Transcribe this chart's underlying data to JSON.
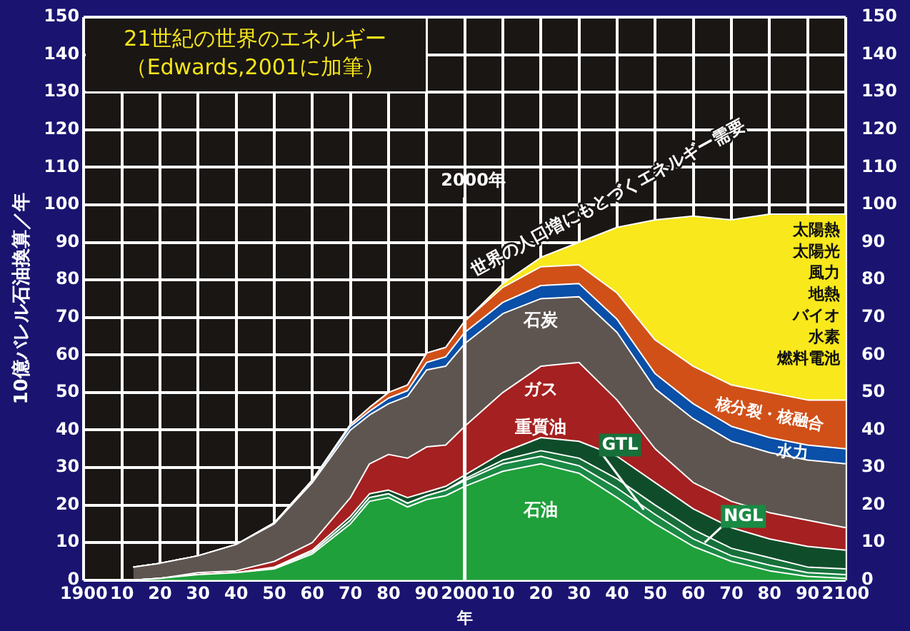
{
  "chart_data": {
    "type": "area",
    "stacked": true,
    "title": "21世紀の世界のエネルギー",
    "subtitle": "（Edwards,2001に加筆）",
    "ylabel": "10億バレル石油換算／年",
    "xlabel": "年",
    "x": [
      1913,
      1920,
      1930,
      1940,
      1950,
      1960,
      1970,
      1975,
      1980,
      1985,
      1990,
      1995,
      2000,
      2010,
      2020,
      2030,
      2040,
      2050,
      2060,
      2070,
      2080,
      2090,
      2100
    ],
    "series": [
      {
        "name": "石油",
        "color": "#1fa03a",
        "values": [
          0,
          0.5,
          1.5,
          2,
          3,
          7,
          15,
          21,
          22,
          19.5,
          21.5,
          22.5,
          25,
          29,
          31,
          28.5,
          22,
          15,
          9,
          5,
          2.5,
          1,
          0.5
        ]
      },
      {
        "name": "NGL",
        "color": "#1a8a44",
        "values": [
          0,
          0,
          0,
          0,
          0.3,
          0.5,
          1,
          1,
          1,
          1,
          1,
          1.5,
          1.5,
          2,
          2,
          2,
          2.5,
          2.5,
          2,
          1.5,
          1.5,
          1,
          1
        ]
      },
      {
        "name": "GTL",
        "color": "#17703a",
        "values": [
          0,
          0,
          0,
          0,
          0,
          0,
          0,
          0,
          0,
          0,
          0,
          0,
          0.5,
          1,
          1.5,
          2,
          2.5,
          2.5,
          2.5,
          2,
          2,
          1.5,
          1.5
        ]
      },
      {
        "name": "重質油",
        "color": "#0f4d2a",
        "values": [
          0,
          0,
          0,
          0,
          0.2,
          0.5,
          1,
          1,
          1,
          1.5,
          1,
          1,
          1,
          2,
          3.5,
          4.5,
          6,
          6,
          5.5,
          5.5,
          5,
          5.5,
          5
        ]
      },
      {
        "name": "ガス",
        "color": "#a52020",
        "values": [
          0,
          0,
          0.5,
          0.5,
          1.5,
          2,
          5,
          8,
          9.5,
          10.5,
          12,
          11,
          13,
          16,
          19,
          21,
          15,
          9,
          7,
          7,
          7,
          7,
          6
        ]
      },
      {
        "name": "石炭",
        "color": "#5e5550",
        "values": [
          3.5,
          4,
          4.5,
          7,
          10,
          16,
          18,
          13,
          13.5,
          16.5,
          20.5,
          21,
          22,
          21,
          18,
          17.5,
          18,
          16,
          17,
          16,
          16,
          16,
          17
        ]
      },
      {
        "name": "水力",
        "color": "#0a4fa8",
        "values": [
          0,
          0,
          0,
          0,
          0.3,
          0.5,
          1,
          1,
          1.5,
          1.5,
          2,
          2.5,
          3,
          3,
          3.5,
          3.5,
          3.5,
          4,
          4,
          4,
          4,
          4,
          4
        ]
      },
      {
        "name": "核分裂・核融合",
        "color": "#d05018",
        "values": [
          0,
          0,
          0,
          0,
          0,
          0.2,
          0.5,
          1,
          1.5,
          1.5,
          2.5,
          2.5,
          3,
          4,
          5,
          5,
          7,
          9,
          10,
          11,
          12,
          12,
          13
        ]
      },
      {
        "color": "#f8e81c",
        "values": [
          0,
          0,
          0,
          0,
          0,
          0,
          0,
          0,
          0,
          0,
          0,
          0,
          0,
          1,
          2.5,
          6,
          17.5,
          32,
          40,
          44,
          47.5,
          49.5,
          49.5
        ]
      }
    ],
    "xlim": [
      1900,
      2100
    ],
    "xticks": [
      1900,
      {
        "value": 1910,
        "label": "10"
      },
      {
        "value": 1920,
        "label": "20"
      },
      {
        "value": 1930,
        "label": "30"
      },
      {
        "value": 1940,
        "label": "40"
      },
      {
        "value": 1950,
        "label": "50"
      },
      {
        "value": 1960,
        "label": "60"
      },
      {
        "value": 1970,
        "label": "70"
      },
      {
        "value": 1980,
        "label": "80"
      },
      {
        "value": 1990,
        "label": "90"
      },
      2000,
      {
        "value": 2010,
        "label": "10"
      },
      {
        "value": 2020,
        "label": "20"
      },
      {
        "value": 2030,
        "label": "30"
      },
      {
        "value": 2040,
        "label": "40"
      },
      {
        "value": 2050,
        "label": "50"
      },
      {
        "value": 2060,
        "label": "60"
      },
      {
        "value": 2070,
        "label": "70"
      },
      {
        "value": 2080,
        "label": "80"
      },
      {
        "value": 2090,
        "label": "90"
      },
      2100
    ],
    "ylim": [
      0,
      150
    ],
    "yticks": [
      0,
      10,
      20,
      30,
      40,
      50,
      60,
      70,
      80,
      90,
      100,
      110,
      120,
      130,
      140,
      150
    ],
    "y2lim": [
      0,
      150
    ],
    "y2ticks": [
      0,
      10,
      20,
      30,
      40,
      50,
      60,
      70,
      80,
      90,
      100,
      110,
      120,
      130,
      140,
      150
    ],
    "grid": true,
    "legend": false,
    "ref_lines": [
      {
        "axis": "x",
        "value": 2000,
        "label": "2000年",
        "color": "#ffffff"
      }
    ],
    "annotations": [
      {
        "text": "世界の人口増にもとづくエネルギー需要",
        "x": 2003,
        "y": 72
      },
      "太陽熱",
      "太陽光",
      "風力",
      "地熱",
      "バイオ",
      "水素",
      "燃料電池"
    ]
  }
}
